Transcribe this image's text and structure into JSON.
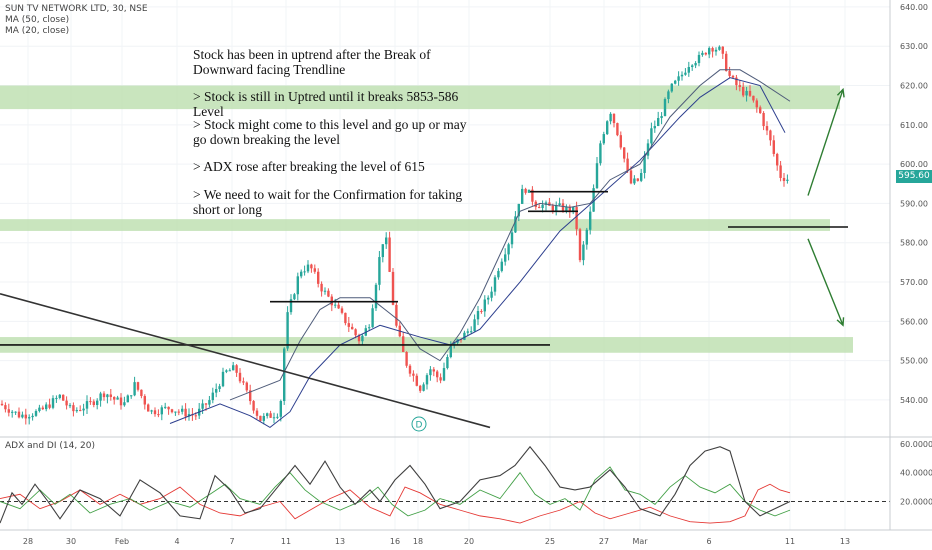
{
  "header": {
    "symbol_line": "SUN TV NETWORK LTD, 30, NSE",
    "ma1": "MA (50, close)",
    "ma2": "MA (20, close)"
  },
  "annotations": [
    "Stock has been in uptrend after the Break of Downward facing Trendline",
    "> Stock is still in Uptred until it breaks 5853-586 Level",
    "> Stock might come to this level and go up or may go down breaking the level",
    "> ADX rose after breaking the level of 615",
    "> We need to wait for the Confirmation for taking short or long"
  ],
  "last_price_label": "595.60",
  "event_marker": "D",
  "indicator": {
    "title": "ADX and DI (14, 20)"
  },
  "colors": {
    "up": "#26a69a",
    "down": "#ef5350",
    "ma50": "#2d3f8e",
    "ma20": "#4f5c7a",
    "zone": "#b7dca8",
    "adx": "#404040",
    "di_plus": "#43a047",
    "di_minus": "#e53935"
  },
  "chart_data": [
    {
      "type": "candlestick",
      "title": "SUN TV NETWORK LTD, 30, NSE",
      "y_ticks": [
        "640.00",
        "630.00",
        "620.00",
        "610.00",
        "600.00",
        "590.00",
        "580.00",
        "570.00",
        "560.00",
        "550.00",
        "540.00"
      ],
      "ylim": [
        533,
        641
      ],
      "x_ticks": [
        "28",
        "30",
        "Feb",
        "4",
        "7",
        "11",
        "13",
        "16",
        "18",
        "20",
        "25",
        "27",
        "Mar",
        "6",
        "11",
        "13"
      ],
      "price_anchors": [
        [
          0,
          539
        ],
        [
          20,
          536
        ],
        [
          40,
          537
        ],
        [
          60,
          541
        ],
        [
          72,
          537
        ],
        [
          90,
          539
        ],
        [
          105,
          542
        ],
        [
          115,
          540
        ],
        [
          125,
          539
        ],
        [
          135,
          544
        ],
        [
          150,
          537
        ],
        [
          170,
          538
        ],
        [
          180,
          537
        ],
        [
          195,
          536
        ],
        [
          210,
          540
        ],
        [
          225,
          547
        ],
        [
          235,
          548
        ],
        [
          250,
          540
        ],
        [
          260,
          535
        ],
        [
          280,
          537
        ],
        [
          286,
          560
        ],
        [
          300,
          573
        ],
        [
          310,
          574
        ],
        [
          320,
          569
        ],
        [
          340,
          562
        ],
        [
          360,
          555
        ],
        [
          370,
          560
        ],
        [
          380,
          577
        ],
        [
          385,
          583
        ],
        [
          395,
          560
        ],
        [
          405,
          550
        ],
        [
          420,
          543
        ],
        [
          430,
          548
        ],
        [
          440,
          545
        ],
        [
          450,
          553
        ],
        [
          470,
          558
        ],
        [
          490,
          567
        ],
        [
          500,
          575
        ],
        [
          510,
          581
        ],
        [
          520,
          592
        ],
        [
          525,
          594
        ],
        [
          535,
          590
        ],
        [
          550,
          589
        ],
        [
          560,
          589
        ],
        [
          575,
          588
        ],
        [
          580,
          575
        ],
        [
          590,
          587
        ],
        [
          600,
          605
        ],
        [
          610,
          614
        ],
        [
          620,
          606
        ],
        [
          630,
          595
        ],
        [
          640,
          596
        ],
        [
          650,
          608
        ],
        [
          660,
          612
        ],
        [
          670,
          619
        ],
        [
          680,
          622
        ],
        [
          690,
          626
        ],
        [
          700,
          627
        ],
        [
          710,
          630
        ],
        [
          720,
          629
        ],
        [
          730,
          622
        ],
        [
          740,
          619
        ],
        [
          750,
          617
        ],
        [
          760,
          613
        ],
        [
          770,
          606
        ],
        [
          780,
          597
        ],
        [
          790,
          596
        ]
      ],
      "ma50_anchors": [
        [
          170,
          534
        ],
        [
          190,
          536
        ],
        [
          220,
          539
        ],
        [
          250,
          536
        ],
        [
          270,
          533
        ],
        [
          290,
          537
        ],
        [
          310,
          546
        ],
        [
          340,
          554
        ],
        [
          380,
          559
        ],
        [
          420,
          556
        ],
        [
          450,
          554
        ],
        [
          480,
          558
        ],
        [
          520,
          570
        ],
        [
          560,
          583
        ],
        [
          600,
          592
        ],
        [
          640,
          601
        ],
        [
          680,
          612
        ],
        [
          700,
          617
        ],
        [
          730,
          622
        ],
        [
          760,
          620
        ],
        [
          785,
          608
        ]
      ],
      "ma20_anchors": [
        [
          230,
          540
        ],
        [
          250,
          542
        ],
        [
          280,
          545
        ],
        [
          300,
          555
        ],
        [
          320,
          563
        ],
        [
          340,
          566
        ],
        [
          370,
          566
        ],
        [
          400,
          560
        ],
        [
          420,
          553
        ],
        [
          440,
          550
        ],
        [
          460,
          557
        ],
        [
          480,
          566
        ],
        [
          500,
          577
        ],
        [
          520,
          588
        ],
        [
          540,
          590
        ],
        [
          570,
          589
        ],
        [
          590,
          590
        ],
        [
          610,
          596
        ],
        [
          640,
          600
        ],
        [
          670,
          612
        ],
        [
          700,
          620
        ],
        [
          720,
          624
        ],
        [
          740,
          624
        ],
        [
          760,
          621
        ],
        [
          790,
          616
        ]
      ],
      "zones": [
        [
          614,
          620
        ],
        [
          583,
          586
        ],
        [
          552,
          556
        ]
      ],
      "levels": [
        {
          "price": 554,
          "x1": 0,
          "x2": 550
        },
        {
          "price": 565,
          "x1": 270,
          "x2": 398
        },
        {
          "price": 593,
          "x1": 530,
          "x2": 608
        },
        {
          "price": 588,
          "x1": 528,
          "x2": 578
        },
        {
          "price": 584,
          "x1": 728,
          "x2": 848
        }
      ],
      "trendline": [
        [
          0,
          567
        ],
        [
          490,
          533
        ]
      ],
      "arrows": [
        [
          [
            808,
            592
          ],
          [
            843,
            619
          ]
        ],
        [
          [
            808,
            581
          ],
          [
            843,
            559
          ]
        ]
      ]
    },
    {
      "type": "line",
      "title": "ADX and DI (14, 20)",
      "y_ticks": [
        "60.0000",
        "40.0000",
        "20.0000"
      ],
      "ylim": [
        0,
        62
      ],
      "reference": 20,
      "adx_anchors": [
        [
          0,
          5
        ],
        [
          12,
          26
        ],
        [
          22,
          18
        ],
        [
          35,
          32
        ],
        [
          48,
          20
        ],
        [
          60,
          8
        ],
        [
          80,
          28
        ],
        [
          100,
          22
        ],
        [
          120,
          10
        ],
        [
          140,
          35
        ],
        [
          160,
          26
        ],
        [
          180,
          10
        ],
        [
          200,
          8
        ],
        [
          215,
          38
        ],
        [
          230,
          28
        ],
        [
          245,
          12
        ],
        [
          260,
          15
        ],
        [
          280,
          32
        ],
        [
          295,
          45
        ],
        [
          310,
          32
        ],
        [
          325,
          48
        ],
        [
          340,
          30
        ],
        [
          355,
          18
        ],
        [
          370,
          28
        ],
        [
          380,
          20
        ],
        [
          395,
          35
        ],
        [
          410,
          45
        ],
        [
          425,
          32
        ],
        [
          440,
          15
        ],
        [
          460,
          20
        ],
        [
          480,
          35
        ],
        [
          500,
          38
        ],
        [
          515,
          45
        ],
        [
          530,
          58
        ],
        [
          545,
          45
        ],
        [
          560,
          30
        ],
        [
          575,
          28
        ],
        [
          590,
          30
        ],
        [
          610,
          42
        ],
        [
          625,
          30
        ],
        [
          640,
          15
        ],
        [
          660,
          10
        ],
        [
          675,
          25
        ],
        [
          690,
          45
        ],
        [
          705,
          55
        ],
        [
          720,
          58
        ],
        [
          730,
          55
        ],
        [
          745,
          20
        ],
        [
          760,
          10
        ],
        [
          775,
          15
        ],
        [
          790,
          20
        ]
      ],
      "di_plus_anchors": [
        [
          0,
          20
        ],
        [
          20,
          15
        ],
        [
          40,
          28
        ],
        [
          55,
          18
        ],
        [
          70,
          25
        ],
        [
          90,
          12
        ],
        [
          110,
          18
        ],
        [
          130,
          22
        ],
        [
          150,
          14
        ],
        [
          170,
          20
        ],
        [
          190,
          16
        ],
        [
          210,
          25
        ],
        [
          225,
          32
        ],
        [
          240,
          22
        ],
        [
          260,
          18
        ],
        [
          275,
          30
        ],
        [
          290,
          40
        ],
        [
          305,
          28
        ],
        [
          320,
          20
        ],
        [
          340,
          14
        ],
        [
          360,
          20
        ],
        [
          378,
          30
        ],
        [
          392,
          18
        ],
        [
          408,
          10
        ],
        [
          425,
          14
        ],
        [
          440,
          22
        ],
        [
          460,
          18
        ],
        [
          480,
          28
        ],
        [
          500,
          22
        ],
        [
          520,
          40
        ],
        [
          535,
          25
        ],
        [
          550,
          18
        ],
        [
          565,
          22
        ],
        [
          580,
          14
        ],
        [
          595,
          35
        ],
        [
          610,
          44
        ],
        [
          625,
          28
        ],
        [
          640,
          25
        ],
        [
          655,
          18
        ],
        [
          670,
          30
        ],
        [
          685,
          38
        ],
        [
          700,
          30
        ],
        [
          715,
          26
        ],
        [
          730,
          32
        ],
        [
          745,
          20
        ],
        [
          760,
          14
        ],
        [
          775,
          10
        ],
        [
          790,
          14
        ]
      ],
      "di_minus_anchors": [
        [
          0,
          22
        ],
        [
          20,
          25
        ],
        [
          40,
          15
        ],
        [
          60,
          20
        ],
        [
          80,
          28
        ],
        [
          100,
          18
        ],
        [
          120,
          25
        ],
        [
          140,
          18
        ],
        [
          160,
          22
        ],
        [
          180,
          30
        ],
        [
          200,
          18
        ],
        [
          220,
          12
        ],
        [
          240,
          10
        ],
        [
          260,
          16
        ],
        [
          280,
          20
        ],
        [
          295,
          8
        ],
        [
          310,
          14
        ],
        [
          330,
          22
        ],
        [
          350,
          28
        ],
        [
          370,
          16
        ],
        [
          390,
          10
        ],
        [
          405,
          30
        ],
        [
          420,
          26
        ],
        [
          440,
          18
        ],
        [
          460,
          14
        ],
        [
          480,
          10
        ],
        [
          500,
          8
        ],
        [
          520,
          5
        ],
        [
          540,
          10
        ],
        [
          560,
          14
        ],
        [
          580,
          20
        ],
        [
          595,
          12
        ],
        [
          610,
          8
        ],
        [
          630,
          12
        ],
        [
          650,
          16
        ],
        [
          670,
          10
        ],
        [
          690,
          6
        ],
        [
          710,
          5
        ],
        [
          730,
          6
        ],
        [
          745,
          10
        ],
        [
          758,
          28
        ],
        [
          770,
          32
        ],
        [
          780,
          28
        ],
        [
          790,
          26
        ]
      ]
    }
  ]
}
